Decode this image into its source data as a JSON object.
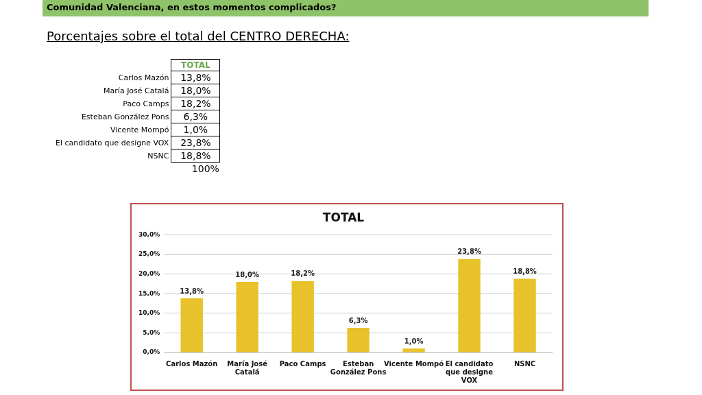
{
  "chart_data": {
    "type": "bar",
    "title": "TOTAL",
    "subtitle": "Porcentajes sobre el total del CENTRO DERECHA:",
    "annotations": [
      "Comunidad Valenciana, en estos momentos complicados?",
      "100%"
    ],
    "categories": [
      "Carlos Mazón",
      "María José Catalá",
      "Paco Camps",
      "Esteban González Pons",
      "Vicente Mompó",
      "El candidato que designe VOX",
      "NSNC"
    ],
    "values": [
      13.8,
      18.0,
      18.2,
      6.3,
      1.0,
      23.8,
      18.8
    ],
    "value_labels": [
      "13,8%",
      "18,0%",
      "18,2%",
      "6,3%",
      "1,0%",
      "23,8%",
      "18,8%"
    ],
    "color": "#e8c22a",
    "ylim": [
      0,
      30
    ],
    "yticks": [
      {
        "value": 0,
        "label": "0,0%"
      },
      {
        "value": 5,
        "label": "5,0%"
      },
      {
        "value": 10,
        "label": "10,0%"
      },
      {
        "value": 15,
        "label": "15,0%"
      },
      {
        "value": 20,
        "label": "20,0%"
      },
      {
        "value": 25,
        "label": "25,0%"
      },
      {
        "value": 30,
        "label": "30,0%"
      }
    ],
    "grid": "y",
    "legend": false
  }
}
